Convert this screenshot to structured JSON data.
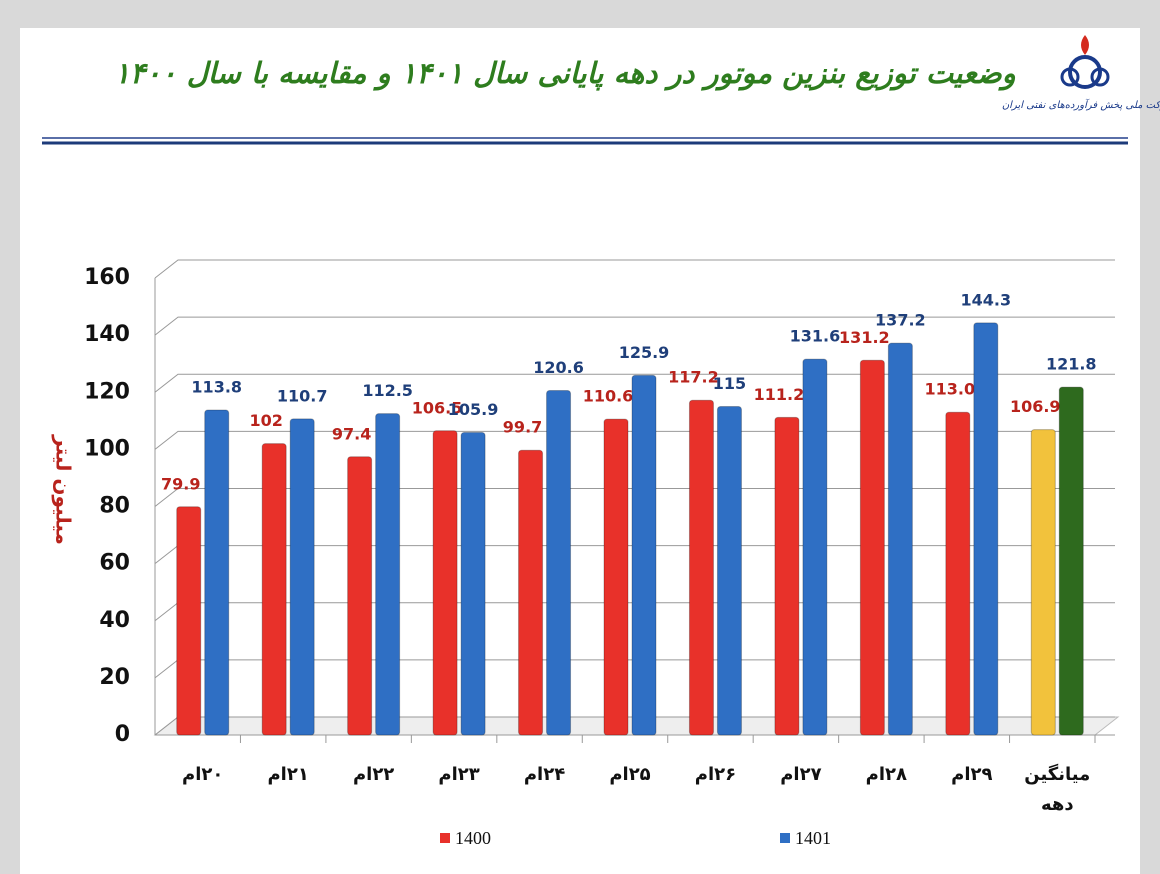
{
  "header": {
    "title": "وضعیت توزیع بنزین موتور در دهه پایانی سال ۱۴۰۱ و مقایسه با سال ۱۴۰۰",
    "logo_text": "شرکت ملی پخش فرآورده‌های نفتی ایران"
  },
  "chart_data": {
    "type": "bar",
    "y_label": "میلیون لیتر",
    "categories": [
      "۲۰ام",
      "۲۱ام",
      "۲۲ام",
      "۲۳ام",
      "۲۴ام",
      "۲۵ام",
      "۲۶ام",
      "۲۷ام",
      "۲۸ام",
      "۲۹ام",
      "میانگین دهه"
    ],
    "series": [
      {
        "name": "1400",
        "color": "#e8312a",
        "label_color": "#b8231c",
        "colors": [
          "#e8312a",
          "#e8312a",
          "#e8312a",
          "#e8312a",
          "#e8312a",
          "#e8312a",
          "#e8312a",
          "#e8312a",
          "#e8312a",
          "#e8312a",
          "#f2c23c"
        ],
        "values": [
          79.9,
          102,
          97.4,
          106.5,
          99.7,
          110.6,
          117.2,
          111.2,
          131.2,
          113,
          106.9
        ],
        "value_labels": [
          "79.9",
          "102",
          "97.4",
          "106.5",
          "99.7",
          "110.6",
          "117.2",
          "111.2",
          "131.2",
          "113.0",
          "106.9"
        ]
      },
      {
        "name": "1401",
        "color": "#2f6fc4",
        "label_color": "#1f3f7a",
        "colors": [
          "#2f6fc4",
          "#2f6fc4",
          "#2f6fc4",
          "#2f6fc4",
          "#2f6fc4",
          "#2f6fc4",
          "#2f6fc4",
          "#2f6fc4",
          "#2f6fc4",
          "#2f6fc4",
          "#2e6a1e"
        ],
        "values": [
          113.8,
          110.7,
          112.5,
          105.9,
          120.6,
          125.9,
          115,
          131.6,
          137.2,
          144.3,
          121.8
        ],
        "value_labels": [
          "113.8",
          "110.7",
          "112.5",
          "105.9",
          "120.6",
          "125.9",
          "115",
          "131.6",
          "137.2",
          "144.3",
          "121.8"
        ]
      }
    ],
    "ylim": [
      0,
      160
    ],
    "yticks": [
      0,
      20,
      40,
      60,
      80,
      100,
      120,
      140,
      160
    ],
    "grid": true,
    "legend": "bottom"
  }
}
